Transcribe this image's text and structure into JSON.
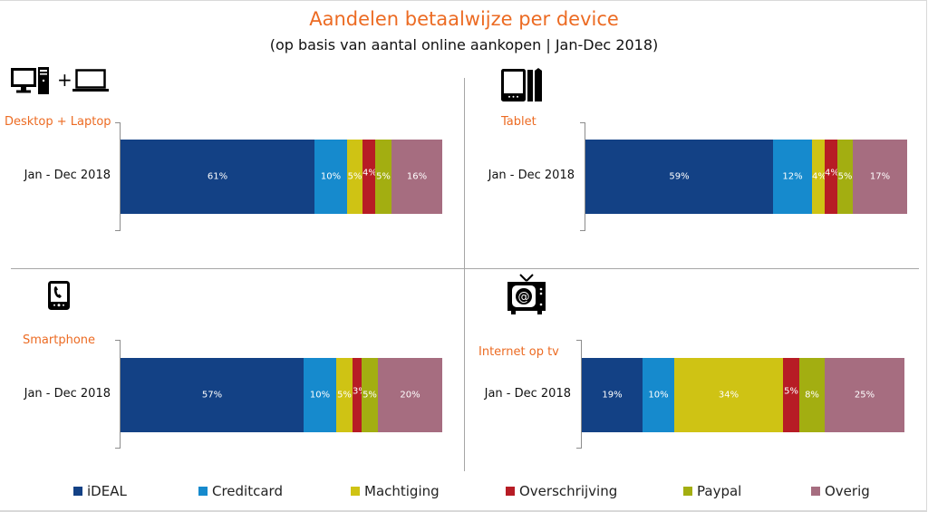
{
  "header": {
    "title": "Aandelen betaalwijze per device",
    "subtitle": "(op basis van aantal online aankopen | Jan-Dec 2018)"
  },
  "colors": {
    "title": "#ec6b23",
    "iDEAL": "#134185",
    "Creditcard": "#168acd",
    "Machtiging": "#cfc314",
    "Overschrijving": "#b71c25",
    "Paypal": "#a3ae11",
    "Overig": "#a66d80"
  },
  "icons": {
    "desktop_laptop": [
      "desktop-computer-icon",
      "plus-icon",
      "laptop-icon"
    ],
    "tablet": "tablet-icon",
    "smartphone": "smartphone-icon",
    "internet_tv": "internet-tv-icon"
  },
  "chart_data": [
    {
      "type": "bar",
      "orientation": "horizontal-stacked-100",
      "title": "Desktop + Laptop",
      "categories": [
        "Jan - Dec 2018"
      ],
      "series": [
        {
          "name": "iDEAL",
          "values": [
            61
          ]
        },
        {
          "name": "Creditcard",
          "values": [
            10
          ]
        },
        {
          "name": "Machtiging",
          "values": [
            5
          ]
        },
        {
          "name": "Overschrijving",
          "values": [
            4
          ]
        },
        {
          "name": "Paypal",
          "values": [
            5
          ]
        },
        {
          "name": "Overig",
          "values": [
            16
          ]
        }
      ],
      "unit": "%",
      "legend": "bottom"
    },
    {
      "type": "bar",
      "orientation": "horizontal-stacked-100",
      "title": "Tablet",
      "categories": [
        "Jan - Dec 2018"
      ],
      "series": [
        {
          "name": "iDEAL",
          "values": [
            59
          ]
        },
        {
          "name": "Creditcard",
          "values": [
            12
          ]
        },
        {
          "name": "Machtiging",
          "values": [
            4
          ]
        },
        {
          "name": "Overschrijving",
          "values": [
            4
          ]
        },
        {
          "name": "Paypal",
          "values": [
            5
          ]
        },
        {
          "name": "Overig",
          "values": [
            17
          ]
        }
      ],
      "unit": "%",
      "legend": "bottom"
    },
    {
      "type": "bar",
      "orientation": "horizontal-stacked-100",
      "title": "Smartphone",
      "categories": [
        "Jan - Dec 2018"
      ],
      "series": [
        {
          "name": "iDEAL",
          "values": [
            57
          ]
        },
        {
          "name": "Creditcard",
          "values": [
            10
          ]
        },
        {
          "name": "Machtiging",
          "values": [
            5
          ]
        },
        {
          "name": "Overschrijving",
          "values": [
            3
          ]
        },
        {
          "name": "Paypal",
          "values": [
            5
          ]
        },
        {
          "name": "Overig",
          "values": [
            20
          ]
        }
      ],
      "unit": "%",
      "legend": "bottom"
    },
    {
      "type": "bar",
      "orientation": "horizontal-stacked-100",
      "title": "Internet op tv",
      "categories": [
        "Jan - Dec 2018"
      ],
      "series": [
        {
          "name": "iDEAL",
          "values": [
            19
          ]
        },
        {
          "name": "Creditcard",
          "values": [
            10
          ]
        },
        {
          "name": "Machtiging",
          "values": [
            34
          ]
        },
        {
          "name": "Overschrijving",
          "values": [
            5
          ]
        },
        {
          "name": "Paypal",
          "values": [
            8
          ]
        },
        {
          "name": "Overig",
          "values": [
            25
          ]
        }
      ],
      "unit": "%",
      "legend": "bottom"
    }
  ],
  "legend": [
    "iDEAL",
    "Creditcard",
    "Machtiging",
    "Overschrijving",
    "Paypal",
    "Overig"
  ]
}
